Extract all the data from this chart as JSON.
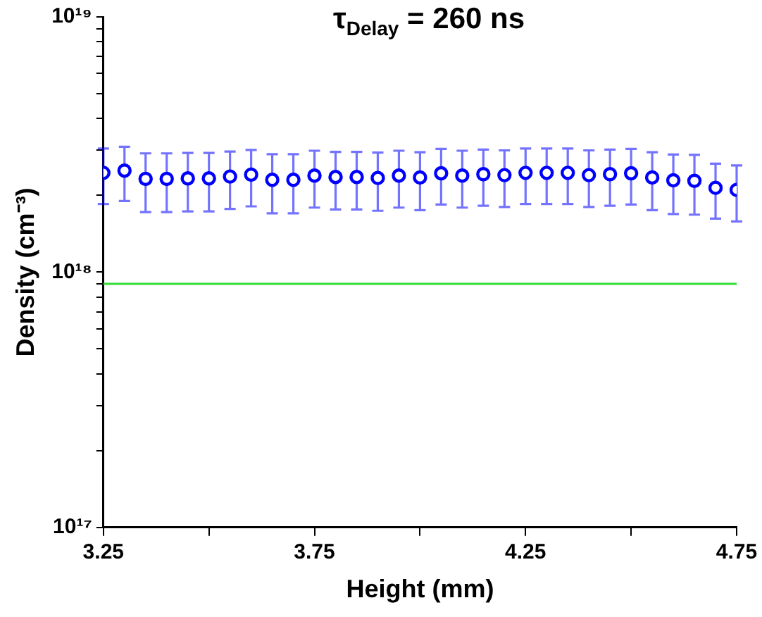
{
  "chart_data": {
    "type": "scatter",
    "title": "τ$_{Delay}$ = 260 ns",
    "xlabel": "Height (mm)",
    "ylabel": "Density (cm⁻³)",
    "x": [
      3.25,
      3.3,
      3.35,
      3.4,
      3.45,
      3.5,
      3.55,
      3.6,
      3.65,
      3.7,
      3.75,
      3.8,
      3.85,
      3.9,
      3.95,
      4.0,
      4.05,
      4.1,
      4.15,
      4.2,
      4.25,
      4.3,
      4.35,
      4.4,
      4.45,
      4.5,
      4.55,
      4.6,
      4.65,
      4.7,
      4.75
    ],
    "series": [
      {
        "color": "#0000ff",
        "values": [
          2.45e+18,
          2.5e+18,
          2.32e+18,
          2.32e+18,
          2.33e+18,
          2.33e+18,
          2.37e+18,
          2.41e+18,
          2.3e+18,
          2.3e+18,
          2.39e+18,
          2.36e+18,
          2.36e+18,
          2.34e+18,
          2.39e+18,
          2.35e+18,
          2.44e+18,
          2.39e+18,
          2.42e+18,
          2.4e+18,
          2.45e+18,
          2.45e+18,
          2.45e+18,
          2.4e+18,
          2.42e+18,
          2.44e+18,
          2.35e+18,
          2.29e+18,
          2.28e+18,
          2.14e+18,
          2.1e+18
        ],
        "errors": [
          6e+17,
          6e+17,
          6e+17,
          6e+17,
          6e+17,
          6e+17,
          6e+17,
          6e+17,
          6e+17,
          6e+17,
          6e+17,
          6e+17,
          6e+17,
          6e+17,
          6e+17,
          6e+17,
          6e+17,
          6e+17,
          6e+17,
          6e+17,
          6e+17,
          6e+17,
          6e+17,
          6e+17,
          6e+17,
          6e+17,
          6e+17,
          6e+17,
          6e+17,
          5.2e+17,
          5.2e+17
        ]
      }
    ],
    "ref_lines": [
      {
        "axis": "y",
        "value": 9e+17,
        "color": "#33dd33"
      }
    ],
    "xlim": [
      3.25,
      4.75
    ],
    "xticks": [
      3.25,
      {
        "value": 3.5,
        "label": null
      },
      3.75,
      {
        "value": 4.0,
        "label": null
      },
      4.25,
      {
        "value": 4.5,
        "label": null
      },
      4.75
    ],
    "ylim": [
      1e+17,
      1e+19
    ],
    "yticks": [
      {
        "value": 1e+17,
        "label": "10¹⁷"
      },
      {
        "value": 2e+17,
        "label": null
      },
      {
        "value": 3e+17,
        "label": null
      },
      {
        "value": 4e+17,
        "label": null
      },
      {
        "value": 5e+17,
        "label": null
      },
      {
        "value": 6e+17,
        "label": null
      },
      {
        "value": 7e+17,
        "label": null
      },
      {
        "value": 8e+17,
        "label": null
      },
      {
        "value": 9e+17,
        "label": null
      },
      {
        "value": 1e+18,
        "label": "10¹⁸"
      },
      {
        "value": 2e+18,
        "label": null
      },
      {
        "value": 3e+18,
        "label": null
      },
      {
        "value": 4e+18,
        "label": null
      },
      {
        "value": 5e+18,
        "label": null
      },
      {
        "value": 6e+18,
        "label": null
      },
      {
        "value": 7e+18,
        "label": null
      },
      {
        "value": 8e+18,
        "label": null
      },
      {
        "value": 9e+18,
        "label": null
      },
      {
        "value": 1e+19,
        "label": "10¹⁹"
      }
    ],
    "log": "y",
    "grid": false,
    "legend": false,
    "marker": "circle"
  }
}
